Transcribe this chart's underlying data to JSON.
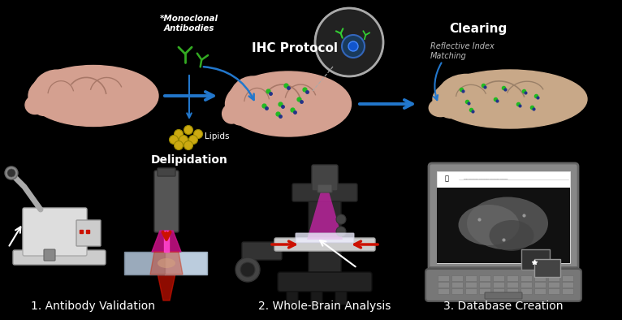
{
  "background_color": "#000000",
  "top_labels": {
    "monoclonal_antibodies": "*Monoclonal\nAntibodies",
    "ihc_protocol": "IHC Protocol",
    "clearing": "Clearing",
    "refractive_index": "Reflective Index\nMatching",
    "lipids": "Lipids",
    "delipidation": "Delipidation"
  },
  "bottom_labels": {
    "step1": "1. Antibody Validation",
    "step2": "2. Whole-Brain Analysis",
    "step3": "3. Database Creation"
  },
  "arrow_color": "#2277CC",
  "text_color": "#FFFFFF",
  "italic_text_color": "#BBBBBB",
  "red_color": "#CC1100",
  "brain_color_fresh": "#D4A090",
  "brain_color_fold": "#C49080",
  "brain_color_cleared": "#C8A888",
  "antibody_color": "#33AA22",
  "lipid_color": "#CCAA11",
  "magenta_color": "#CC22AA",
  "slide_color_left": "#99AABB",
  "slide_color_right": "#BBCCDD",
  "label_fontsize": 10,
  "small_fontsize": 7.5,
  "italic_fontsize": 7
}
